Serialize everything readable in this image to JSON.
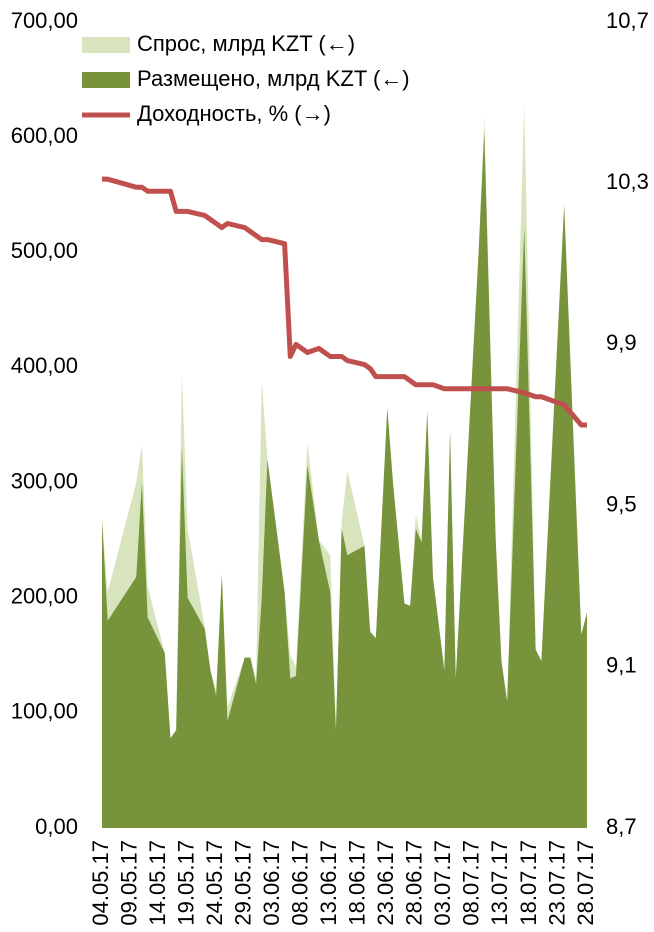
{
  "chart_data": {
    "type": "area",
    "x": [
      "04.05.17",
      "05.05.17",
      "10.05.17",
      "11.05.17",
      "12.05.17",
      "15.05.17",
      "16.05.17",
      "17.05.17",
      "18.05.17",
      "19.05.17",
      "22.05.17",
      "23.05.17",
      "24.05.17",
      "25.05.17",
      "26.05.17",
      "29.05.17",
      "30.05.17",
      "31.05.17",
      "01.06.17",
      "02.06.17",
      "05.06.17",
      "06.06.17",
      "07.06.17",
      "09.06.17",
      "11.06.17",
      "13.06.17",
      "14.06.17",
      "15.06.17",
      "16.06.17",
      "19.06.17",
      "20.06.17",
      "21.06.17",
      "23.06.17",
      "24.06.17",
      "26.06.17",
      "27.06.17",
      "28.06.17",
      "29.06.17",
      "30.06.17",
      "01.07.17",
      "03.07.17",
      "04.07.17",
      "05.07.17",
      "09.07.17",
      "10.07.17",
      "12.07.17",
      "13.07.17",
      "14.07.17",
      "17.07.17",
      "19.07.17",
      "20.07.17",
      "24.07.17",
      "27.07.17",
      "28.07.17"
    ],
    "series": [
      {
        "name": "Спрос, млрд KZT (←)",
        "type": "area",
        "color": "#d7e4bd",
        "values": [
          268,
          205,
          300,
          333,
          210,
          152,
          78,
          85,
          395,
          260,
          175,
          137,
          120,
          222,
          105,
          148,
          148,
          130,
          388,
          320,
          205,
          150,
          140,
          335,
          250,
          237,
          85,
          265,
          310,
          245,
          172,
          165,
          365,
          300,
          195,
          193,
          272,
          250,
          362,
          218,
          137,
          345,
          130,
          500,
          618,
          250,
          145,
          110,
          628,
          155,
          145,
          545,
          168,
          187
        ]
      },
      {
        "name": "Размещено, млрд KZT (←)",
        "type": "area",
        "color": "#77933c",
        "values": [
          268,
          180,
          218,
          300,
          183,
          152,
          78,
          85,
          330,
          200,
          173,
          137,
          115,
          220,
          93,
          148,
          148,
          125,
          200,
          320,
          205,
          130,
          132,
          315,
          250,
          205,
          85,
          260,
          237,
          245,
          170,
          165,
          365,
          300,
          195,
          193,
          260,
          248,
          362,
          218,
          137,
          345,
          130,
          500,
          605,
          250,
          145,
          110,
          522,
          155,
          145,
          540,
          168,
          187
        ]
      },
      {
        "name": "Доходность, % (→)",
        "type": "line",
        "axis": "y2",
        "color": "#c0504d",
        "values": [
          10.31,
          10.31,
          10.29,
          10.29,
          10.28,
          10.28,
          10.28,
          10.23,
          10.23,
          10.23,
          10.22,
          10.21,
          10.2,
          10.19,
          10.2,
          10.19,
          10.18,
          10.17,
          10.16,
          10.16,
          10.15,
          9.87,
          9.9,
          9.88,
          9.89,
          9.87,
          9.87,
          9.87,
          9.86,
          9.85,
          9.84,
          9.82,
          9.82,
          9.82,
          9.82,
          9.81,
          9.8,
          9.8,
          9.8,
          9.8,
          9.79,
          9.79,
          9.79,
          9.79,
          9.79,
          9.79,
          9.79,
          9.79,
          9.78,
          9.77,
          9.77,
          9.75,
          9.7,
          9.7
        ]
      }
    ],
    "xlim": [
      "04.05.17",
      "28.07.17"
    ],
    "xticks": [
      "04.05.17",
      "09.05.17",
      "14.05.17",
      "19.05.17",
      "24.05.17",
      "29.05.17",
      "03.06.17",
      "08.06.17",
      "13.06.17",
      "18.06.17",
      "23.06.17",
      "28.06.17",
      "03.07.17",
      "08.07.17",
      "13.07.17",
      "18.07.17",
      "23.07.17",
      "28.07.17"
    ],
    "ylim": [
      0,
      700
    ],
    "yticks": [
      {
        "value": 0,
        "label": "0,00"
      },
      {
        "value": 100,
        "label": "100,00"
      },
      {
        "value": 200,
        "label": "200,00"
      },
      {
        "value": 300,
        "label": "300,00"
      },
      {
        "value": 400,
        "label": "400,00"
      },
      {
        "value": 500,
        "label": "500,00"
      },
      {
        "value": 600,
        "label": "600,00"
      },
      {
        "value": 700,
        "label": "700,00"
      }
    ],
    "y2lim": [
      8.7,
      10.7
    ],
    "y2ticks": [
      {
        "value": 8.7,
        "label": "8,7"
      },
      {
        "value": 9.1,
        "label": "9,1"
      },
      {
        "value": 9.5,
        "label": "9,5"
      },
      {
        "value": 9.9,
        "label": "9,9"
      },
      {
        "value": 10.3,
        "label": "10,3"
      },
      {
        "value": 10.7,
        "label": "10,7"
      }
    ],
    "legend": "top-left"
  }
}
